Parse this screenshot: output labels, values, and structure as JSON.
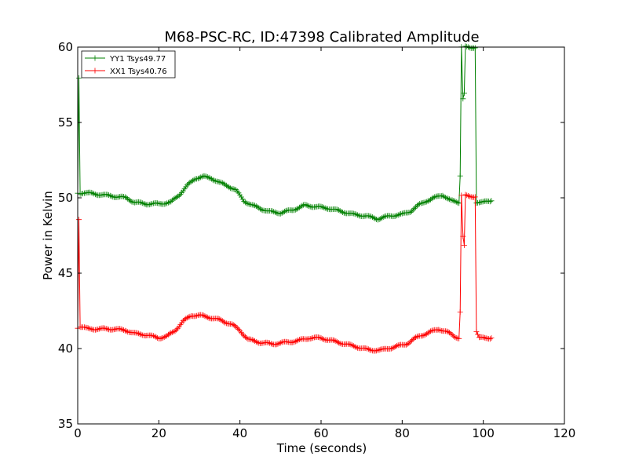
{
  "chart_data": {
    "type": "line",
    "title": "M68-PSC-RC, ID:47398 Calibrated Amplitude",
    "xlabel": "Time (seconds)",
    "ylabel": "Power in Kelvin",
    "xlim": [
      0,
      120
    ],
    "ylim": [
      35,
      60
    ],
    "xticks": [
      "0",
      "20",
      "40",
      "60",
      "80",
      "100",
      "120"
    ],
    "yticks": [
      "35",
      "40",
      "45",
      "50",
      "55",
      "60"
    ],
    "grid": false,
    "legend_position": "top-left",
    "marker": "plus",
    "series": [
      {
        "name": "YY1 Tsys49.77",
        "color": "#008000",
        "points": [
          [
            0,
            50.3
          ],
          [
            0.3,
            58
          ],
          [
            0.6,
            50.3
          ],
          [
            3,
            50.3
          ],
          [
            6,
            50.2
          ],
          [
            9,
            50.1
          ],
          [
            12,
            50.0
          ],
          [
            14,
            49.7
          ],
          [
            17,
            49.6
          ],
          [
            20,
            49.6
          ],
          [
            23,
            49.7
          ],
          [
            25,
            50.2
          ],
          [
            27,
            50.8
          ],
          [
            29,
            51.3
          ],
          [
            31,
            51.4
          ],
          [
            33,
            51.3
          ],
          [
            35,
            51.0
          ],
          [
            37,
            50.8
          ],
          [
            39,
            50.5
          ],
          [
            41,
            49.8
          ],
          [
            43,
            49.5
          ],
          [
            45,
            49.3
          ],
          [
            47,
            49.1
          ],
          [
            50,
            49.0
          ],
          [
            53,
            49.2
          ],
          [
            56,
            49.5
          ],
          [
            59,
            49.4
          ],
          [
            62,
            49.3
          ],
          [
            65,
            49.1
          ],
          [
            68,
            48.9
          ],
          [
            71,
            48.8
          ],
          [
            74,
            48.6
          ],
          [
            77,
            48.8
          ],
          [
            80,
            48.9
          ],
          [
            82,
            49.1
          ],
          [
            84,
            49.5
          ],
          [
            86,
            49.8
          ],
          [
            88,
            50.0
          ],
          [
            90,
            50.2
          ],
          [
            92,
            49.8
          ],
          [
            94,
            49.7
          ],
          [
            94.3,
            51.5
          ],
          [
            94.6,
            60
          ],
          [
            95.0,
            56.6
          ],
          [
            95.3,
            56.9
          ],
          [
            95.6,
            60
          ],
          [
            97,
            59.9
          ],
          [
            98,
            60
          ],
          [
            98.3,
            49.7
          ],
          [
            100,
            49.7
          ],
          [
            102,
            49.8
          ]
        ]
      },
      {
        "name": "XX1 Tsys40.76",
        "color": "#ff0000",
        "points": [
          [
            0,
            41.4
          ],
          [
            0.3,
            48.6
          ],
          [
            0.6,
            41.4
          ],
          [
            3,
            41.3
          ],
          [
            6,
            41.3
          ],
          [
            9,
            41.3
          ],
          [
            12,
            41.2
          ],
          [
            14,
            41.0
          ],
          [
            17,
            40.9
          ],
          [
            20,
            40.7
          ],
          [
            22,
            40.8
          ],
          [
            24,
            41.2
          ],
          [
            26,
            41.8
          ],
          [
            28,
            42.2
          ],
          [
            30,
            42.2
          ],
          [
            32,
            42.1
          ],
          [
            35,
            41.9
          ],
          [
            38,
            41.6
          ],
          [
            40,
            41.2
          ],
          [
            42,
            40.6
          ],
          [
            45,
            40.4
          ],
          [
            48,
            40.3
          ],
          [
            51,
            40.4
          ],
          [
            54,
            40.5
          ],
          [
            57,
            40.7
          ],
          [
            60,
            40.7
          ],
          [
            63,
            40.5
          ],
          [
            66,
            40.3
          ],
          [
            69,
            40.1
          ],
          [
            72,
            39.9
          ],
          [
            75,
            39.9
          ],
          [
            78,
            40.1
          ],
          [
            81,
            40.3
          ],
          [
            84,
            40.8
          ],
          [
            87,
            41.1
          ],
          [
            89,
            41.3
          ],
          [
            91,
            41.1
          ],
          [
            93,
            40.8
          ],
          [
            94,
            40.7
          ],
          [
            94.3,
            42.4
          ],
          [
            94.6,
            50.1
          ],
          [
            95.0,
            47.4
          ],
          [
            95.3,
            46.8
          ],
          [
            95.6,
            50.2
          ],
          [
            97,
            50.1
          ],
          [
            98,
            50.1
          ],
          [
            98.3,
            41.1
          ],
          [
            99,
            40.7
          ],
          [
            102,
            40.7
          ]
        ]
      }
    ]
  }
}
